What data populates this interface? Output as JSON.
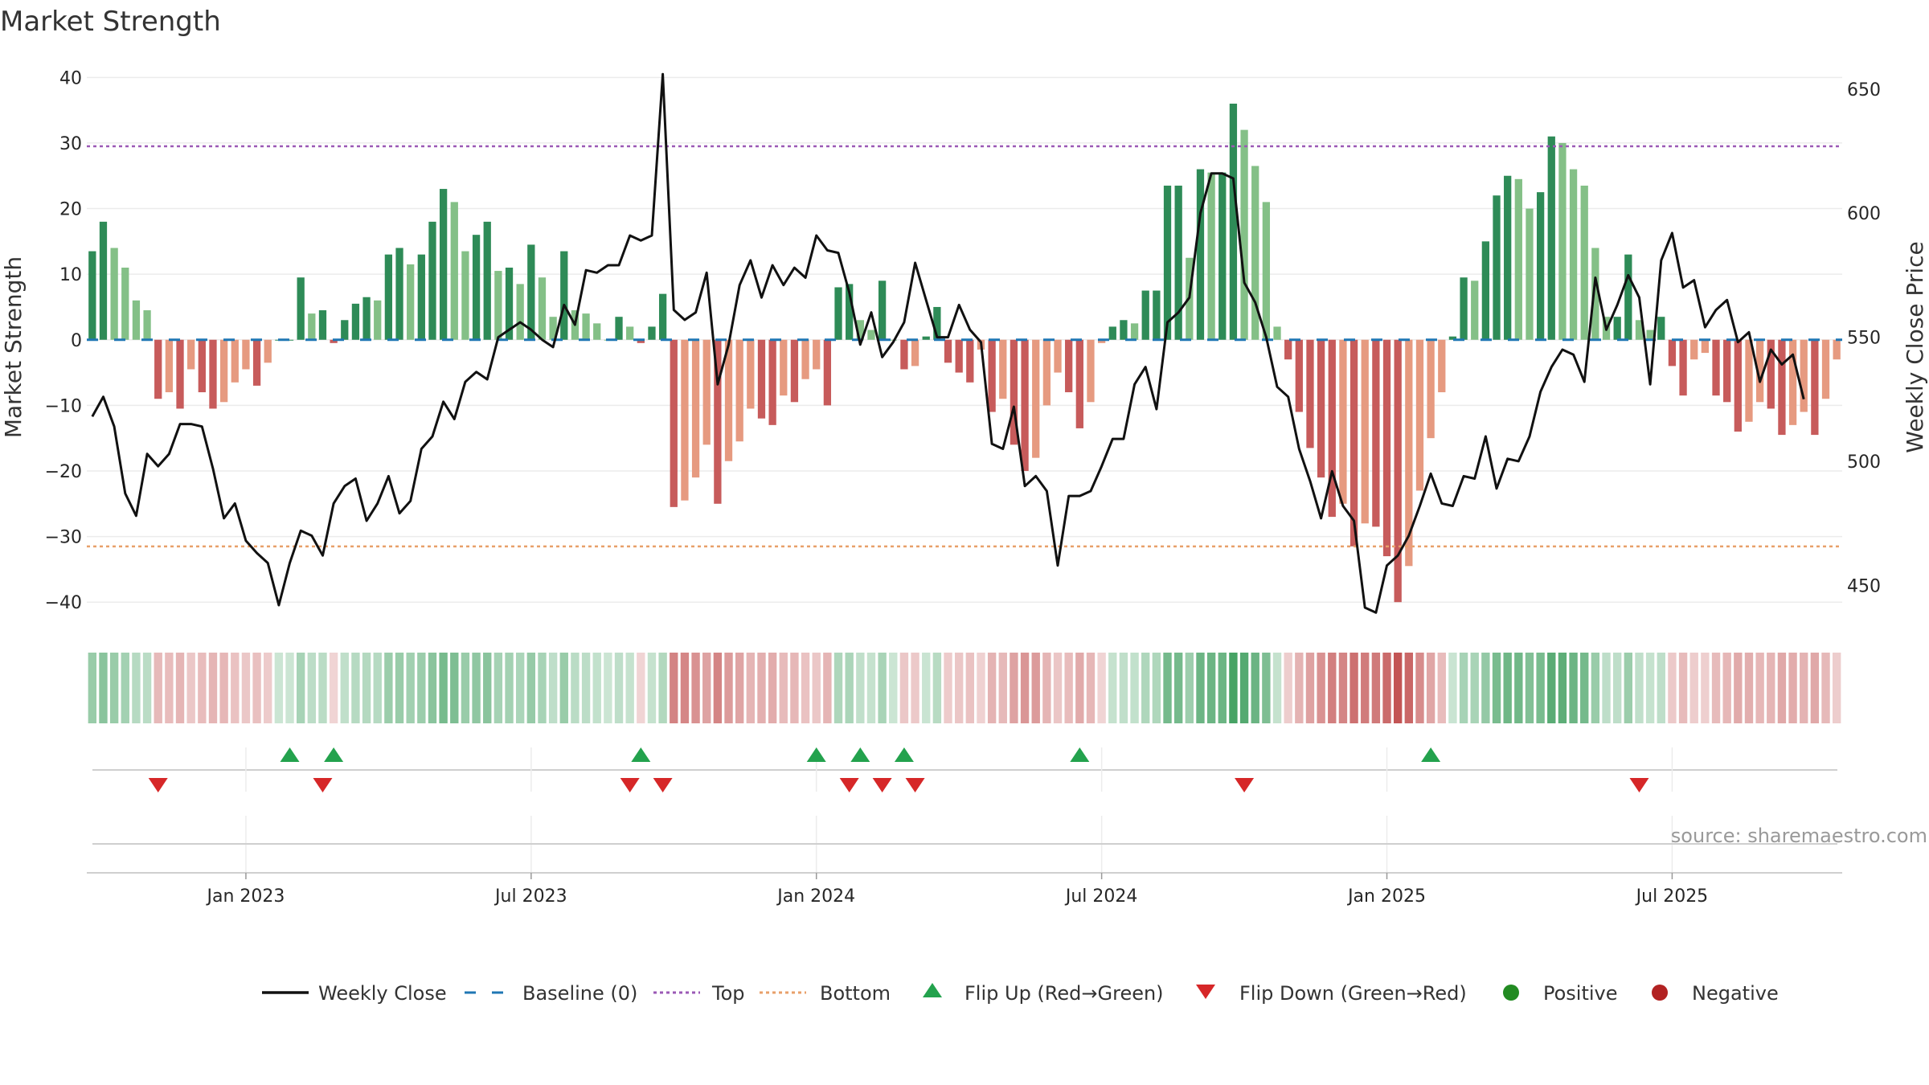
{
  "chart_data": {
    "type": "bar",
    "title": "Market Strength",
    "ylabel_left": "Market Strength",
    "ylabel_right": "Weekly Close Price",
    "ylim_left": [
      -45,
      42
    ],
    "ylim_right": [
      430,
      660
    ],
    "yticks_left": [
      40,
      30,
      20,
      10,
      0,
      -10,
      -20,
      -30,
      -40
    ],
    "yticks_right": [
      650,
      600,
      550,
      500,
      450
    ],
    "x_tick_labels": [
      {
        "label": "Jan 2023",
        "week": 14
      },
      {
        "label": "Jul 2023",
        "week": 40
      },
      {
        "label": "Jan 2024",
        "week": 66
      },
      {
        "label": "Jul 2024",
        "week": 92
      },
      {
        "label": "Jan 2025",
        "week": 118
      },
      {
        "label": "Jul 2025",
        "week": 144
      }
    ],
    "top_level": 29.5,
    "bottom_level": -31.5,
    "strength": [
      13.5,
      18,
      14,
      11,
      6,
      4.5,
      -9,
      -8,
      -10.5,
      -4.5,
      -8,
      -10.5,
      -9.5,
      -6.5,
      -4.5,
      -7,
      -3.5,
      0,
      0,
      9.5,
      4,
      4.5,
      -0.5,
      3,
      5.5,
      6.5,
      6,
      13,
      14,
      11.5,
      13,
      18,
      23,
      21,
      13.5,
      16,
      18,
      10.5,
      11,
      8.5,
      14.5,
      9.5,
      3.5,
      13.5,
      4.5,
      4,
      2.5,
      0,
      3.5,
      2,
      -0.5,
      2,
      7,
      -25.5,
      -24.5,
      -21,
      -16,
      -25,
      -18.5,
      -15.5,
      -10.5,
      -12,
      -13,
      -8.5,
      -9.5,
      -6,
      -4.5,
      -10,
      8,
      8.5,
      3,
      1.5,
      9,
      0,
      -4.5,
      -4,
      0.5,
      5,
      -3.5,
      -5,
      -6.5,
      -1.5,
      -11,
      -9,
      -16,
      -20,
      -18,
      -10,
      -5,
      -8,
      -13.5,
      -9.5,
      -0.5,
      2,
      3,
      2.5,
      7.5,
      7.5,
      23.5,
      23.5,
      12.5,
      26,
      25.5,
      25.5,
      36,
      32,
      26.5,
      21,
      2,
      -3,
      -11,
      -16.5,
      -21,
      -27,
      -25,
      -31.5,
      -28,
      -28.5,
      -33,
      -40,
      -34.5,
      -23,
      -15,
      -8,
      0.5,
      9.5,
      9,
      15,
      22,
      25,
      24.5,
      20,
      22.5,
      31,
      30,
      26,
      23.5,
      14,
      3.5,
      3.5,
      13,
      3,
      1.5,
      3.5,
      -4,
      -8.5,
      -3,
      -2,
      -8.5,
      -9.5,
      -14,
      -12.5,
      -9.5,
      -10.5,
      -14.5,
      -13,
      -11,
      -14.5,
      -9,
      -3
    ],
    "weekly_close": [
      518,
      526,
      514,
      487,
      478,
      503,
      498,
      503,
      515,
      515,
      514,
      497,
      477,
      483,
      468,
      463,
      459,
      442,
      459,
      472,
      470,
      462,
      483,
      490,
      493,
      476,
      483,
      494,
      479,
      484,
      505,
      510,
      524,
      517,
      532,
      536,
      533,
      550,
      553,
      556,
      553,
      549,
      546,
      563,
      555,
      577,
      576,
      579,
      579,
      591,
      589,
      591,
      656,
      561,
      557,
      560,
      576,
      531,
      547,
      571,
      581,
      566,
      579,
      571,
      578,
      574,
      591,
      585,
      584,
      568,
      547,
      560,
      542,
      548,
      556,
      580,
      565,
      550,
      550,
      563,
      553,
      548,
      507,
      505,
      522,
      490,
      494,
      488,
      458,
      486,
      486,
      488,
      498,
      509,
      509,
      531,
      538,
      521,
      556,
      560,
      566,
      600,
      616,
      616,
      614,
      572,
      564,
      550,
      530,
      526,
      505,
      492,
      477,
      496,
      482,
      476,
      441,
      439,
      458,
      462,
      470,
      482,
      495,
      483,
      482,
      494,
      493,
      510,
      489,
      501,
      500,
      510,
      528,
      538,
      545,
      543,
      532,
      574,
      553,
      563,
      575,
      566,
      531,
      581,
      592,
      570,
      573,
      554,
      561,
      565,
      548,
      552,
      532,
      545,
      539,
      543,
      525
    ]
  },
  "flip_up_weeks": [
    18,
    22,
    50,
    66,
    70,
    74,
    90,
    122
  ],
  "flip_down_weeks": [
    6,
    21,
    49,
    52,
    69,
    72,
    75,
    105,
    141
  ],
  "source_text": "source: sharemaestro.com",
  "colors": {
    "pos_strong": "#2e8b57",
    "pos_light": "#84c087",
    "neg_strong": "#c75b5b",
    "neg_light": "#e69a80",
    "top_line": "#9b59b6",
    "bottom_line": "#e8a06a",
    "baseline": "#1f77b4",
    "price_line": "#111111",
    "flip_up": "#23a24d",
    "flip_down": "#d62728",
    "positive_dot": "#228b22",
    "negative_dot": "#b22222"
  },
  "legend": [
    {
      "key": "weekly_close",
      "label": "Weekly Close"
    },
    {
      "key": "baseline",
      "label": "Baseline (0)"
    },
    {
      "key": "top",
      "label": "Top"
    },
    {
      "key": "bottom",
      "label": "Bottom"
    },
    {
      "key": "flip_up",
      "label": "Flip Up (Red→Green)"
    },
    {
      "key": "flip_down",
      "label": "Flip Down (Green→Red)"
    },
    {
      "key": "positive",
      "label": "Positive"
    },
    {
      "key": "negative",
      "label": "Negative"
    }
  ]
}
